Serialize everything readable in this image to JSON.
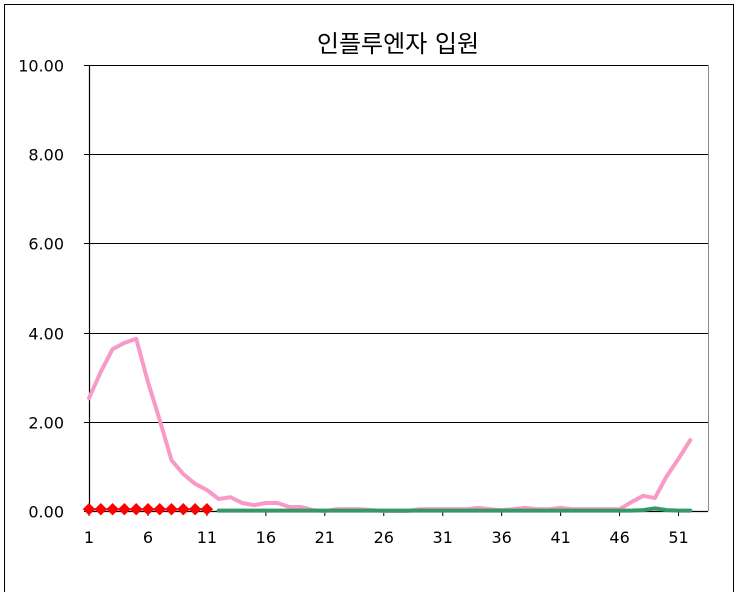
{
  "chart_data": {
    "type": "line",
    "title": "인플루엔자 입원",
    "xlabel": "",
    "ylabel": "",
    "xlim": [
      1,
      53.5
    ],
    "ylim": [
      0,
      10
    ],
    "grid": true,
    "legend": "none",
    "x_tick_labels": [
      "1",
      "6",
      "11",
      "16",
      "21",
      "26",
      "31",
      "36",
      "41",
      "46",
      "51"
    ],
    "y_tick_labels": [
      "0.00",
      "2.00",
      "4.00",
      "6.00",
      "8.00",
      "10.00"
    ],
    "series": [
      {
        "color": "#f79ac8",
        "marker": "none",
        "x": [
          1,
          2,
          3,
          4,
          5,
          6,
          7,
          8,
          9,
          10,
          11,
          12,
          13,
          14,
          15,
          16,
          17,
          18,
          19,
          20,
          21,
          22,
          23,
          24,
          25,
          26,
          27,
          28,
          29,
          30,
          31,
          32,
          33,
          34,
          35,
          36,
          37,
          38,
          39,
          40,
          41,
          42,
          43,
          44,
          45,
          46,
          47,
          48,
          49,
          50,
          51,
          52
        ],
        "values": [
          2.53,
          3.12,
          3.63,
          3.77,
          3.86,
          2.89,
          2.04,
          1.14,
          0.83,
          0.61,
          0.47,
          0.27,
          0.31,
          0.18,
          0.13,
          0.18,
          0.18,
          0.09,
          0.09,
          0.02,
          0.0,
          0.04,
          0.04,
          0.04,
          0.02,
          0.0,
          0.0,
          0.0,
          0.04,
          0.04,
          0.04,
          0.04,
          0.04,
          0.07,
          0.04,
          0.02,
          0.04,
          0.07,
          0.04,
          0.04,
          0.07,
          0.04,
          0.04,
          0.04,
          0.04,
          0.04,
          0.2,
          0.34,
          0.29,
          0.78,
          1.17,
          1.59
        ]
      },
      {
        "color": "#339966",
        "marker": "none",
        "x": [
          12,
          13,
          14,
          15,
          16,
          17,
          18,
          19,
          20,
          21,
          22,
          23,
          24,
          25,
          26,
          27,
          28,
          29,
          30,
          31,
          32,
          33,
          34,
          35,
          36,
          37,
          38,
          39,
          40,
          41,
          42,
          43,
          44,
          45,
          46,
          47,
          48,
          49,
          50,
          51,
          52
        ],
        "values": [
          0.01,
          0.01,
          0.01,
          0.01,
          0.01,
          0.01,
          0.01,
          0.01,
          0.01,
          0.01,
          0.01,
          0.01,
          0.01,
          0.01,
          0.01,
          0.01,
          0.01,
          0.01,
          0.01,
          0.01,
          0.01,
          0.01,
          0.01,
          0.01,
          0.01,
          0.01,
          0.01,
          0.01,
          0.01,
          0.01,
          0.01,
          0.01,
          0.01,
          0.01,
          0.01,
          0.01,
          0.02,
          0.06,
          0.02,
          0.01,
          0.01
        ]
      },
      {
        "color": "#ff0000",
        "marker": "diamond",
        "x": [
          1,
          2,
          3,
          4,
          5,
          6,
          7,
          8,
          9,
          10,
          11
        ],
        "values": [
          0.04,
          0.04,
          0.04,
          0.04,
          0.04,
          0.04,
          0.04,
          0.04,
          0.04,
          0.04,
          0.04
        ]
      }
    ]
  }
}
